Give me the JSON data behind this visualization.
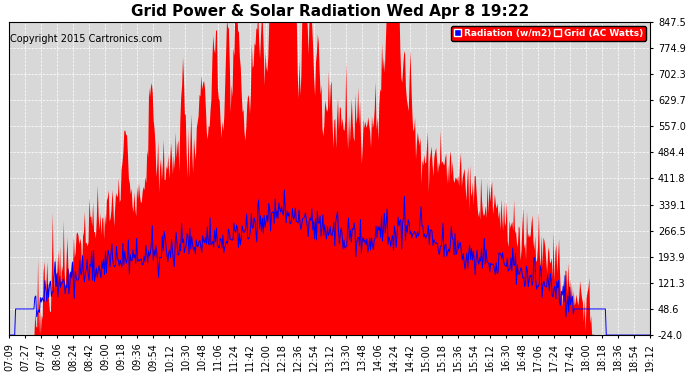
{
  "title": "Grid Power & Solar Radiation Wed Apr 8 19:22",
  "copyright": "Copyright 2015 Cartronics.com",
  "legend_radiation": "Radiation (w/m2)",
  "legend_grid": "Grid (AC Watts)",
  "yticks": [
    -24.0,
    48.6,
    121.3,
    193.9,
    266.5,
    339.1,
    411.8,
    484.4,
    557.0,
    629.7,
    702.3,
    774.9,
    847.5
  ],
  "xtick_labels": [
    "07:09",
    "07:27",
    "07:47",
    "08:06",
    "08:24",
    "08:42",
    "09:00",
    "09:18",
    "09:36",
    "09:54",
    "10:12",
    "10:30",
    "10:48",
    "11:06",
    "11:24",
    "11:42",
    "12:00",
    "12:18",
    "12:36",
    "12:54",
    "13:12",
    "13:30",
    "13:48",
    "14:06",
    "14:24",
    "14:42",
    "15:00",
    "15:18",
    "15:36",
    "15:54",
    "16:12",
    "16:30",
    "16:48",
    "17:06",
    "17:24",
    "17:42",
    "18:00",
    "18:18",
    "18:36",
    "18:54",
    "19:12"
  ],
  "title_fontsize": 11,
  "copyright_fontsize": 7,
  "axis_fontsize": 7,
  "ymin": -24.0,
  "ymax": 847.5,
  "background_color": "#ffffff",
  "plot_bg_color": "#d8d8d8",
  "grid_line_color": "#ffffff",
  "solar_fill_color": "#ff0000",
  "blue_line_color": "#0000ff"
}
